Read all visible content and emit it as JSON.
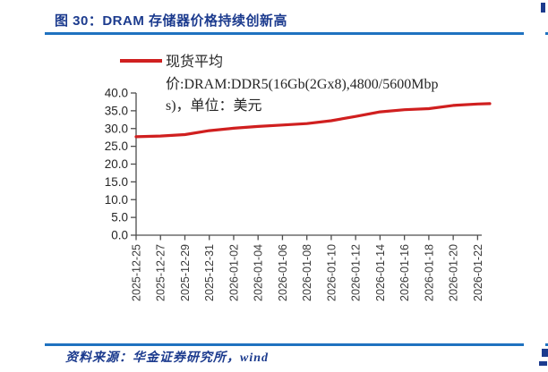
{
  "page": {
    "figure_title": "图 30：DRAM 存储器价格持续创新高",
    "source_note": "资料来源：华金证券研究所，wind",
    "colors": {
      "heading_blue": "#1c3b8e",
      "rule_blue": "#1f72c0",
      "line_red": "#d01f1f",
      "axis_gray": "#4d4d4d",
      "axis_text": "#3a3a3a",
      "legend_text": "#262626"
    }
  },
  "legend": {
    "lines": "现货平均\n价:DRAM:DDR5(16Gb(2Gx8),4800/5600Mbp\ns)，单位：美元",
    "full_label": "现货平均价:DRAM:DDR5(16Gb(2Gx8),4800/5600Mbps)，单位：美元"
  },
  "chart_data": {
    "type": "line",
    "title": "",
    "xlabel": "",
    "ylabel": "",
    "unit": "美元",
    "ylim": [
      0,
      40
    ],
    "ytick_step": 5,
    "ytick_decimals": 1,
    "grid": false,
    "legend_position": "top-left",
    "x_label_rotation": -90,
    "x_tick_labels": [
      "2025-12-25",
      "2025-12-27",
      "2025-12-29",
      "2025-12-31",
      "2026-01-02",
      "2026-01-04",
      "2026-01-06",
      "2026-01-08",
      "2026-01-10",
      "2026-01-12",
      "2026-01-14",
      "2026-01-16",
      "2026-01-18",
      "2026-01-20",
      "2026-01-22"
    ],
    "series": [
      {
        "name": "现货平均价:DRAM:DDR5(16Gb(2Gx8),4800/5600Mbps)，单位：美元",
        "color": "#d01f1f",
        "points": [
          [
            "2025-12-25",
            27.7
          ],
          [
            "2025-12-27",
            27.9
          ],
          [
            "2025-12-29",
            28.3
          ],
          [
            "2025-12-31",
            29.4
          ],
          [
            "2026-01-02",
            30.1
          ],
          [
            "2026-01-04",
            30.6
          ],
          [
            "2026-01-06",
            31.0
          ],
          [
            "2026-01-08",
            31.4
          ],
          [
            "2026-01-10",
            32.2
          ],
          [
            "2026-01-12",
            33.4
          ],
          [
            "2026-01-14",
            34.7
          ],
          [
            "2026-01-16",
            35.3
          ],
          [
            "2026-01-18",
            35.6
          ],
          [
            "2026-01-20",
            36.5
          ],
          [
            "2026-01-22",
            36.9
          ],
          [
            "2026-01-23",
            37.0
          ]
        ]
      }
    ]
  }
}
